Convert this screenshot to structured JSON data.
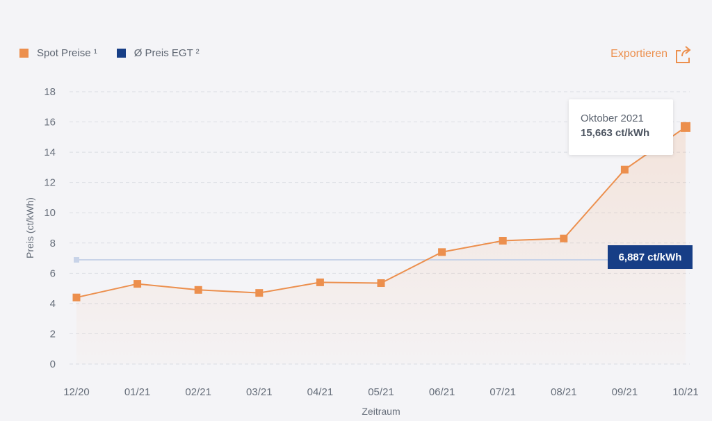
{
  "legend": {
    "spot_label": "Spot Preise ¹",
    "avg_label": "Ø Preis EGT ²"
  },
  "export": {
    "label": "Exportieren",
    "icon": "share-export-icon"
  },
  "tooltip": {
    "title": "Oktober 2021",
    "value": "15,663 ct/kWh"
  },
  "avg_badge": "6,887 ct/kWh",
  "colors": {
    "spot": "#ec8f4d",
    "avg": "#173e86",
    "avg_line": "#c8d3e8",
    "grid": "#dadde3",
    "background": "#f4f4f7"
  },
  "chart_data": {
    "type": "line",
    "title": "",
    "xlabel": "Zeitraum",
    "ylabel": "Preis (ct/kWh)",
    "ylim": [
      0,
      18
    ],
    "yticks": [
      0,
      2,
      4,
      6,
      8,
      10,
      12,
      14,
      16,
      18
    ],
    "categories": [
      "12/20",
      "01/21",
      "02/21",
      "03/21",
      "04/21",
      "05/21",
      "06/21",
      "07/21",
      "08/21",
      "09/21",
      "10/21"
    ],
    "grid": true,
    "legend_position": "top-left",
    "series": [
      {
        "name": "Spot Preise ¹",
        "style": "line-area",
        "values": [
          4.4,
          5.3,
          4.9,
          4.7,
          5.4,
          5.35,
          7.4,
          8.15,
          8.3,
          12.85,
          15.663
        ]
      },
      {
        "name": "Ø Preis EGT ²",
        "style": "constant-line",
        "values": [
          6.887,
          6.887,
          6.887,
          6.887,
          6.887,
          6.887,
          6.887,
          6.887,
          6.887,
          6.887,
          6.887
        ]
      }
    ]
  }
}
